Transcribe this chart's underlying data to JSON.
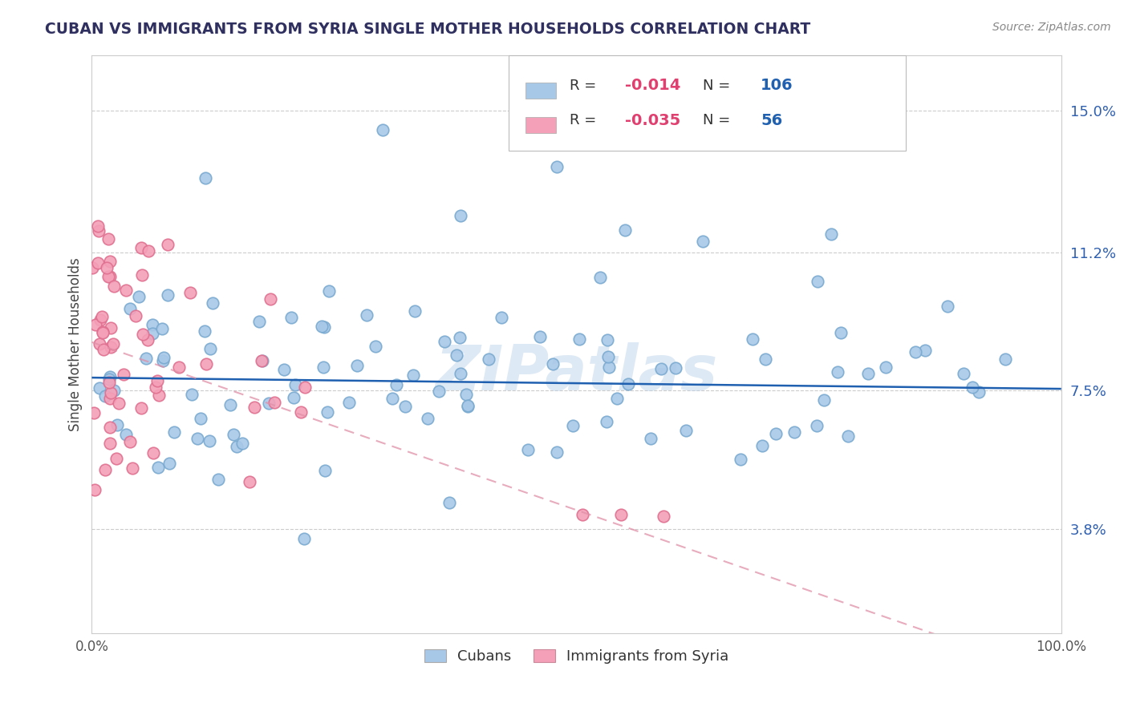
{
  "title": "CUBAN VS IMMIGRANTS FROM SYRIA SINGLE MOTHER HOUSEHOLDS CORRELATION CHART",
  "source": "Source: ZipAtlas.com",
  "ylabel": "Single Mother Households",
  "yticks": [
    3.8,
    7.5,
    11.2,
    15.0
  ],
  "ytick_labels": [
    "3.8%",
    "7.5%",
    "11.2%",
    "15.0%"
  ],
  "xmin": 0.0,
  "xmax": 100.0,
  "ymin": 1.0,
  "ymax": 16.5,
  "legend_labels": [
    "Cubans",
    "Immigrants from Syria"
  ],
  "r_cuban": "-0.014",
  "n_cuban": "106",
  "r_syria": "-0.035",
  "n_syria": "56",
  "color_cuban": "#a8c8e8",
  "color_cuban_edge": "#7aaad0",
  "color_syria": "#f4a0b8",
  "color_syria_edge": "#e07090",
  "line_color_cuban": "#2060b0",
  "line_color_syria": "#e090a8",
  "watermark": "ZIPatlas",
  "background_color": "#ffffff",
  "title_color": "#303060",
  "legend_r_color": "#e04070",
  "legend_n_color": "#2060b0",
  "cuban_intercept": 7.85,
  "cuban_slope": -0.003,
  "syria_intercept": 8.8,
  "syria_slope": -0.09
}
